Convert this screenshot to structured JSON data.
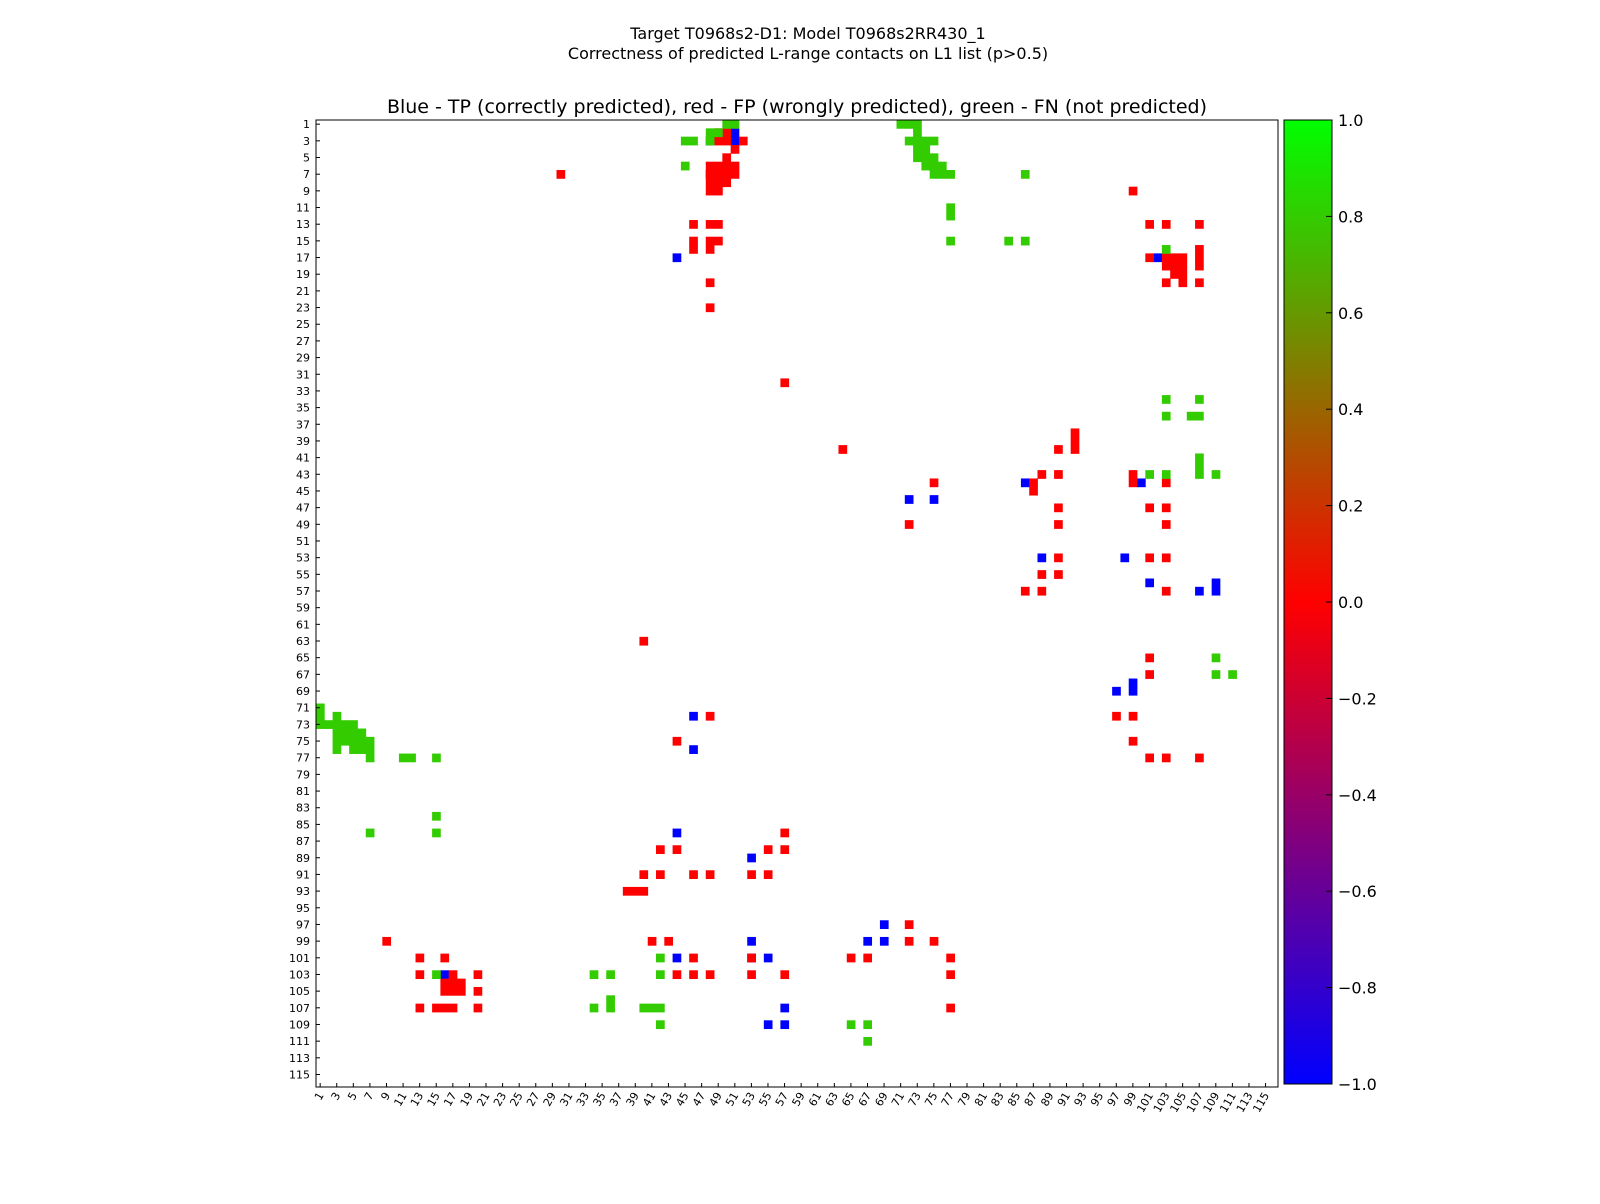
{
  "header": {
    "line1": "Target T0968s2-D1: Model T0968s2RR430_1",
    "line2": "Correctness of predicted L-range contacts on L1 list (p>0.5)"
  },
  "chart_data": {
    "type": "heatmap",
    "title": "Blue - TP (correctly predicted), red - FP (wrongly predicted), green - FN (not predicted)",
    "xlabel": "",
    "ylabel": "",
    "x_range": [
      1,
      116
    ],
    "y_range": [
      1,
      116
    ],
    "x_ticks": [
      1,
      3,
      5,
      7,
      9,
      11,
      13,
      15,
      17,
      19,
      21,
      23,
      25,
      27,
      29,
      31,
      33,
      35,
      37,
      39,
      41,
      43,
      45,
      47,
      49,
      51,
      53,
      55,
      57,
      59,
      61,
      63,
      65,
      67,
      69,
      71,
      73,
      75,
      77,
      79,
      81,
      83,
      85,
      87,
      89,
      91,
      93,
      95,
      97,
      99,
      101,
      103,
      105,
      107,
      109,
      111,
      113,
      115
    ],
    "y_ticks": [
      1,
      3,
      5,
      7,
      9,
      11,
      13,
      15,
      17,
      19,
      21,
      23,
      25,
      27,
      29,
      31,
      33,
      35,
      37,
      39,
      41,
      43,
      45,
      47,
      49,
      51,
      53,
      55,
      57,
      59,
      61,
      63,
      65,
      67,
      69,
      71,
      73,
      75,
      77,
      79,
      81,
      83,
      85,
      87,
      89,
      91,
      93,
      95,
      97,
      99,
      101,
      103,
      105,
      107,
      109,
      111,
      113,
      115
    ],
    "colorbar": {
      "min": -1.0,
      "max": 1.0,
      "ticks": [
        1.0,
        0.8,
        0.6,
        0.4,
        0.2,
        0.0,
        -0.2,
        -0.4,
        -0.6,
        -0.8,
        -1.0
      ],
      "tick_labels": [
        "1.0",
        "0.8",
        "0.6",
        "0.4",
        "0.2",
        "0.0",
        "−0.2",
        "−0.4",
        "−0.6",
        "−0.8",
        "−1.0"
      ],
      "colors": [
        "#0000ff",
        "#ff0000",
        "#00ff00"
      ]
    },
    "category_colors": {
      "TP": "#0000ff",
      "FP": "#ff0000",
      "FN": "#33cc00"
    },
    "upper_cells": {
      "TP": [
        [
          48,
          3
        ],
        [
          51,
          2
        ],
        [
          51,
          3
        ],
        [
          48,
          7
        ],
        [
          44,
          17
        ],
        [
          102,
          17
        ],
        [
          86,
          44
        ],
        [
          72,
          46
        ],
        [
          75,
          46
        ],
        [
          100,
          44
        ],
        [
          88,
          53
        ],
        [
          98,
          53
        ],
        [
          101,
          56
        ],
        [
          109,
          56
        ],
        [
          107,
          57
        ],
        [
          109,
          57
        ],
        [
          46,
          72
        ],
        [
          46,
          76
        ],
        [
          97,
          69
        ],
        [
          99,
          68
        ],
        [
          99,
          69
        ]
      ],
      "FP": [
        [
          49,
          2
        ],
        [
          50,
          2
        ],
        [
          49,
          3
        ],
        [
          50,
          3
        ],
        [
          52,
          3
        ],
        [
          51,
          4
        ],
        [
          50,
          5
        ],
        [
          49,
          6
        ],
        [
          50,
          6
        ],
        [
          51,
          6
        ],
        [
          48,
          6
        ],
        [
          48,
          7
        ],
        [
          49,
          7
        ],
        [
          50,
          7
        ],
        [
          51,
          7
        ],
        [
          48,
          8
        ],
        [
          49,
          8
        ],
        [
          50,
          8
        ],
        [
          48,
          9
        ],
        [
          49,
          9
        ],
        [
          30,
          7
        ],
        [
          46,
          13
        ],
        [
          48,
          13
        ],
        [
          49,
          13
        ],
        [
          46,
          15
        ],
        [
          46,
          16
        ],
        [
          48,
          15
        ],
        [
          49,
          15
        ],
        [
          48,
          16
        ],
        [
          48,
          20
        ],
        [
          48,
          23
        ],
        [
          57,
          32
        ],
        [
          99,
          9
        ],
        [
          101,
          13
        ],
        [
          103,
          13
        ],
        [
          107,
          13
        ],
        [
          101,
          17
        ],
        [
          103,
          17
        ],
        [
          103,
          18
        ],
        [
          104,
          17
        ],
        [
          104,
          18
        ],
        [
          105,
          17
        ],
        [
          105,
          18
        ],
        [
          104,
          19
        ],
        [
          105,
          19
        ],
        [
          107,
          16
        ],
        [
          107,
          17
        ],
        [
          107,
          18
        ],
        [
          103,
          20
        ],
        [
          105,
          20
        ],
        [
          107,
          20
        ],
        [
          64,
          40
        ],
        [
          92,
          38
        ],
        [
          92,
          39
        ],
        [
          92,
          40
        ],
        [
          90,
          40
        ],
        [
          88,
          43
        ],
        [
          90,
          43
        ],
        [
          87,
          44
        ],
        [
          87,
          45
        ],
        [
          99,
          43
        ],
        [
          99,
          44
        ],
        [
          103,
          44
        ],
        [
          75,
          44
        ],
        [
          90,
          47
        ],
        [
          90,
          49
        ],
        [
          72,
          49
        ],
        [
          101,
          47
        ],
        [
          103,
          47
        ],
        [
          103,
          49
        ],
        [
          90,
          53
        ],
        [
          101,
          53
        ],
        [
          103,
          53
        ],
        [
          88,
          55
        ],
        [
          90,
          55
        ],
        [
          86,
          57
        ],
        [
          88,
          57
        ],
        [
          103,
          57
        ],
        [
          101,
          65
        ],
        [
          101,
          67
        ],
        [
          97,
          72
        ],
        [
          99,
          72
        ],
        [
          99,
          75
        ],
        [
          101,
          77
        ],
        [
          103,
          77
        ],
        [
          107,
          77
        ],
        [
          48,
          72
        ],
        [
          44,
          75
        ]
      ],
      "FN": [
        [
          48,
          2
        ],
        [
          49,
          2
        ],
        [
          50,
          1
        ],
        [
          51,
          1
        ],
        [
          48,
          3
        ],
        [
          45,
          3
        ],
        [
          46,
          3
        ],
        [
          45,
          6
        ],
        [
          71,
          1
        ],
        [
          72,
          1
        ],
        [
          73,
          1
        ],
        [
          73,
          2
        ],
        [
          72,
          3
        ],
        [
          73,
          3
        ],
        [
          74,
          3
        ],
        [
          75,
          3
        ],
        [
          73,
          4
        ],
        [
          74,
          4
        ],
        [
          73,
          5
        ],
        [
          74,
          5
        ],
        [
          75,
          5
        ],
        [
          74,
          6
        ],
        [
          75,
          6
        ],
        [
          76,
          6
        ],
        [
          75,
          7
        ],
        [
          76,
          7
        ],
        [
          77,
          7
        ],
        [
          86,
          7
        ],
        [
          77,
          11
        ],
        [
          77,
          12
        ],
        [
          77,
          15
        ],
        [
          84,
          15
        ],
        [
          86,
          15
        ],
        [
          103,
          16
        ],
        [
          103,
          34
        ],
        [
          107,
          34
        ],
        [
          103,
          36
        ],
        [
          106,
          36
        ],
        [
          107,
          36
        ],
        [
          107,
          41
        ],
        [
          107,
          42
        ],
        [
          107,
          43
        ],
        [
          101,
          43
        ],
        [
          103,
          43
        ],
        [
          109,
          43
        ],
        [
          109,
          65
        ],
        [
          109,
          67
        ],
        [
          111,
          67
        ]
      ]
    },
    "lower_cells": {
      "TP": [
        [
          16,
          103
        ],
        [
          44,
          101
        ],
        [
          53,
          101
        ],
        [
          55,
          101
        ],
        [
          53,
          99
        ],
        [
          57,
          107
        ],
        [
          55,
          109
        ],
        [
          57,
          109
        ],
        [
          44,
          86
        ],
        [
          53,
          89
        ],
        [
          69,
          97
        ],
        [
          67,
          99
        ],
        [
          69,
          99
        ]
      ],
      "FP": [
        [
          9,
          99
        ],
        [
          13,
          101
        ],
        [
          16,
          101
        ],
        [
          13,
          103
        ],
        [
          16,
          104
        ],
        [
          17,
          104
        ],
        [
          18,
          104
        ],
        [
          16,
          105
        ],
        [
          17,
          105
        ],
        [
          18,
          105
        ],
        [
          17,
          103
        ],
        [
          20,
          103
        ],
        [
          20,
          105
        ],
        [
          13,
          107
        ],
        [
          15,
          107
        ],
        [
          16,
          107
        ],
        [
          17,
          107
        ],
        [
          20,
          107
        ],
        [
          41,
          99
        ],
        [
          43,
          99
        ],
        [
          44,
          103
        ],
        [
          46,
          101
        ],
        [
          46,
          103
        ],
        [
          48,
          103
        ],
        [
          53,
          101
        ],
        [
          53,
          103
        ],
        [
          57,
          103
        ],
        [
          57,
          86
        ],
        [
          57,
          88
        ],
        [
          55,
          88
        ],
        [
          53,
          91
        ],
        [
          55,
          91
        ],
        [
          44,
          88
        ],
        [
          42,
          88
        ],
        [
          42,
          91
        ],
        [
          40,
          91
        ],
        [
          46,
          91
        ],
        [
          48,
          91
        ],
        [
          38,
          93
        ],
        [
          39,
          93
        ],
        [
          40,
          93
        ],
        [
          40,
          63
        ],
        [
          65,
          101
        ],
        [
          67,
          101
        ],
        [
          72,
          97
        ],
        [
          72,
          99
        ],
        [
          75,
          99
        ],
        [
          77,
          101
        ],
        [
          77,
          103
        ],
        [
          77,
          107
        ]
      ],
      "FN": [
        [
          34,
          103
        ],
        [
          36,
          103
        ],
        [
          36,
          106
        ],
        [
          36,
          107
        ],
        [
          34,
          107
        ],
        [
          40,
          107
        ],
        [
          41,
          107
        ],
        [
          42,
          107
        ],
        [
          42,
          101
        ],
        [
          42,
          103
        ],
        [
          42,
          109
        ],
        [
          65,
          109
        ],
        [
          67,
          109
        ],
        [
          67,
          111
        ],
        [
          15,
          103
        ],
        [
          15,
          84
        ],
        [
          15,
          86
        ],
        [
          15,
          77
        ],
        [
          7,
          86
        ],
        [
          11,
          77
        ],
        [
          12,
          77
        ],
        [
          1,
          71
        ],
        [
          1,
          72
        ],
        [
          1,
          73
        ],
        [
          2,
          73
        ],
        [
          3,
          72
        ],
        [
          3,
          73
        ],
        [
          4,
          73
        ],
        [
          5,
          73
        ],
        [
          3,
          74
        ],
        [
          4,
          74
        ],
        [
          5,
          74
        ],
        [
          6,
          74
        ],
        [
          3,
          75
        ],
        [
          4,
          75
        ],
        [
          5,
          75
        ],
        [
          6,
          75
        ],
        [
          7,
          75
        ],
        [
          3,
          76
        ],
        [
          5,
          76
        ],
        [
          6,
          76
        ],
        [
          7,
          76
        ],
        [
          7,
          77
        ]
      ]
    }
  }
}
